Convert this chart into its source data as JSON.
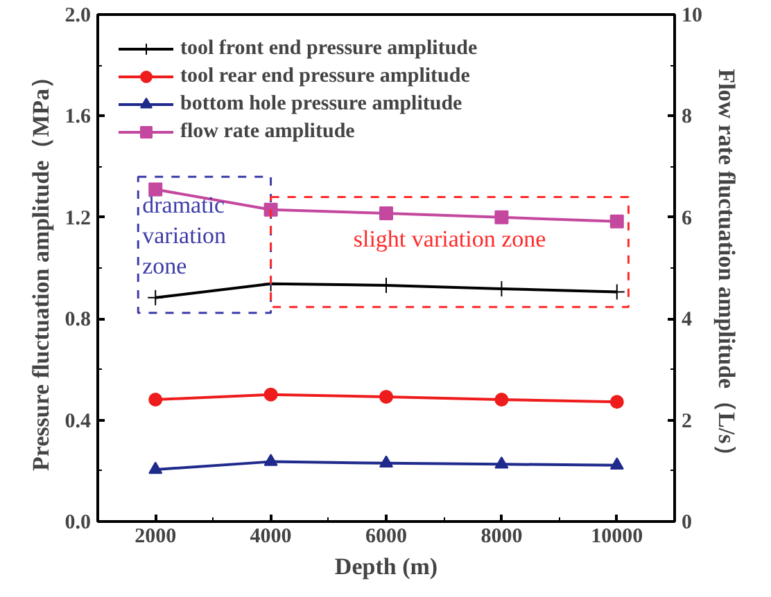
{
  "chart_data": {
    "type": "line",
    "xlabel": "Depth (m)",
    "ylabel": "Pressure fluctuation amplitude（MPa）",
    "y2label": "Flow rate fluctuation amplitude（L/s）",
    "x": [
      2000,
      4000,
      6000,
      8000,
      10000
    ],
    "series": [
      {
        "name": "tool front end pressure amplitude",
        "color": "#000000",
        "marker": "cross",
        "values": [
          0.883,
          0.938,
          0.932,
          0.918,
          0.906
        ]
      },
      {
        "name": "tool rear end pressure amplitude",
        "color": "#ee1c1c",
        "marker": "circle",
        "values": [
          0.481,
          0.501,
          0.492,
          0.481,
          0.472
        ]
      },
      {
        "name": "bottom hole pressure amplitude",
        "color": "#1f2a8c",
        "marker": "triangle",
        "values": [
          0.205,
          0.236,
          0.23,
          0.226,
          0.222
        ]
      },
      {
        "name": "flow rate amplitude",
        "color": "#c4489e",
        "marker": "square",
        "axis": "y2",
        "values": [
          6.55,
          6.15,
          6.08,
          6.0,
          5.92
        ]
      }
    ],
    "xlim": [
      1000,
      11000
    ],
    "xticks": [
      2000,
      4000,
      6000,
      8000,
      10000
    ],
    "ylim": [
      0,
      2
    ],
    "yticks": [
      {
        "value": 0,
        "label": "0.0"
      },
      {
        "value": 0.4,
        "label": "0.4"
      },
      {
        "value": 0.8,
        "label": "0.8"
      },
      {
        "value": 1.2,
        "label": "1.2"
      },
      {
        "value": 1.6,
        "label": "1.6"
      },
      {
        "value": 2,
        "label": "2.0"
      }
    ],
    "y2lim": [
      0,
      10
    ],
    "y2ticks": [
      0,
      2,
      4,
      6,
      8,
      10
    ],
    "annotations": [
      "dramatic variation zone",
      "slight variation zone"
    ],
    "grid": false,
    "legend": "top left",
    "line_style": "solid"
  }
}
